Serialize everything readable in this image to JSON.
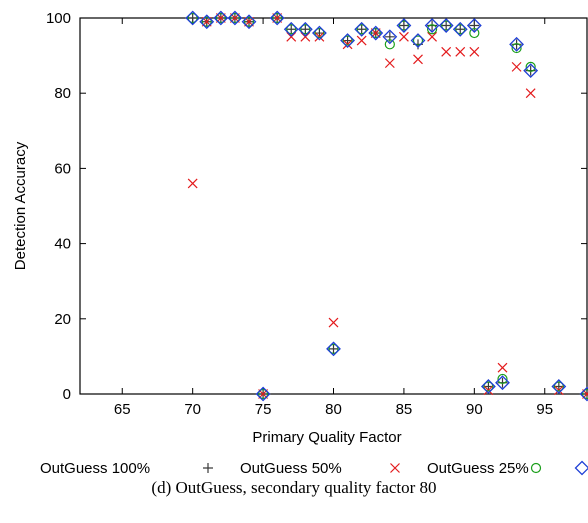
{
  "chart_data": {
    "type": "scatter",
    "title": "",
    "xlabel": "Primary Quality Factor",
    "ylabel": "Detection Accuracy",
    "xlim": [
      62,
      98
    ],
    "ylim": [
      0,
      100
    ],
    "xticks": [
      65,
      70,
      75,
      80,
      85,
      90,
      95
    ],
    "yticks": [
      0,
      20,
      40,
      60,
      80,
      100
    ],
    "grid": false,
    "legend_position": "below",
    "series": [
      {
        "name": "OutGuess 100%",
        "marker": "plus",
        "color": "#3a3a3a",
        "points": [
          [
            70,
            100
          ],
          [
            71,
            99
          ],
          [
            72,
            100
          ],
          [
            73,
            100
          ],
          [
            74,
            99
          ],
          [
            75,
            0
          ],
          [
            76,
            100
          ],
          [
            77,
            97
          ],
          [
            78,
            97
          ],
          [
            79,
            96
          ],
          [
            80,
            12
          ],
          [
            81,
            94
          ],
          [
            82,
            97
          ],
          [
            83,
            96
          ],
          [
            84,
            95
          ],
          [
            85,
            98
          ],
          [
            86,
            93
          ],
          [
            87,
            98
          ],
          [
            88,
            98
          ],
          [
            89,
            97
          ],
          [
            90,
            98
          ],
          [
            91,
            2
          ],
          [
            92,
            3
          ],
          [
            93,
            93
          ],
          [
            94,
            86
          ],
          [
            96,
            2
          ],
          [
            98,
            0
          ]
        ]
      },
      {
        "name": "OutGuess 50%",
        "marker": "cross",
        "color": "#e31a1c",
        "points": [
          [
            70,
            56
          ],
          [
            71,
            99
          ],
          [
            72,
            100
          ],
          [
            73,
            100
          ],
          [
            74,
            99
          ],
          [
            75,
            0
          ],
          [
            76,
            100
          ],
          [
            77,
            95
          ],
          [
            78,
            95
          ],
          [
            79,
            95
          ],
          [
            80,
            19
          ],
          [
            81,
            93
          ],
          [
            82,
            94
          ],
          [
            83,
            96
          ],
          [
            84,
            88
          ],
          [
            85,
            95
          ],
          [
            86,
            89
          ],
          [
            87,
            95
          ],
          [
            88,
            91
          ],
          [
            89,
            91
          ],
          [
            90,
            91
          ],
          [
            91,
            1
          ],
          [
            92,
            7
          ],
          [
            93,
            87
          ],
          [
            94,
            80
          ],
          [
            96,
            1
          ],
          [
            98,
            0
          ]
        ]
      },
      {
        "name": "OutGuess 25%",
        "marker": "circle",
        "color": "#1a9e1a",
        "points": [
          [
            70,
            100
          ],
          [
            71,
            99
          ],
          [
            72,
            100
          ],
          [
            73,
            100
          ],
          [
            74,
            99
          ],
          [
            75,
            0
          ],
          [
            76,
            100
          ],
          [
            77,
            97
          ],
          [
            78,
            97
          ],
          [
            79,
            96
          ],
          [
            80,
            12
          ],
          [
            81,
            94
          ],
          [
            82,
            97
          ],
          [
            83,
            96
          ],
          [
            84,
            93
          ],
          [
            85,
            98
          ],
          [
            86,
            94
          ],
          [
            87,
            97
          ],
          [
            88,
            98
          ],
          [
            89,
            97
          ],
          [
            90,
            96
          ],
          [
            91,
            2
          ],
          [
            92,
            4
          ],
          [
            93,
            92
          ],
          [
            94,
            87
          ],
          [
            96,
            2
          ],
          [
            98,
            0
          ]
        ]
      },
      {
        "name": "",
        "marker": "diamond",
        "color": "#1f3fd6",
        "points": [
          [
            70,
            100
          ],
          [
            71,
            99
          ],
          [
            72,
            100
          ],
          [
            73,
            100
          ],
          [
            74,
            99
          ],
          [
            75,
            0
          ],
          [
            76,
            100
          ],
          [
            77,
            97
          ],
          [
            78,
            97
          ],
          [
            79,
            96
          ],
          [
            80,
            12
          ],
          [
            81,
            94
          ],
          [
            82,
            97
          ],
          [
            83,
            96
          ],
          [
            84,
            95
          ],
          [
            85,
            98
          ],
          [
            86,
            94
          ],
          [
            87,
            98
          ],
          [
            88,
            98
          ],
          [
            89,
            97
          ],
          [
            90,
            98
          ],
          [
            91,
            2
          ],
          [
            92,
            3
          ],
          [
            93,
            93
          ],
          [
            94,
            86
          ],
          [
            96,
            2
          ],
          [
            98,
            0
          ]
        ]
      }
    ]
  },
  "legend": {
    "items": [
      {
        "label": "OutGuess 100%",
        "marker": "plus",
        "color": "#3a3a3a"
      },
      {
        "label": "OutGuess 50%",
        "marker": "cross",
        "color": "#e31a1c"
      },
      {
        "label": "OutGuess 25%",
        "marker": "circle",
        "color": "#1a9e1a"
      },
      {
        "label": "",
        "marker": "diamond",
        "color": "#1f3fd6"
      }
    ]
  },
  "caption": "(d) OutGuess, secondary quality factor 80"
}
